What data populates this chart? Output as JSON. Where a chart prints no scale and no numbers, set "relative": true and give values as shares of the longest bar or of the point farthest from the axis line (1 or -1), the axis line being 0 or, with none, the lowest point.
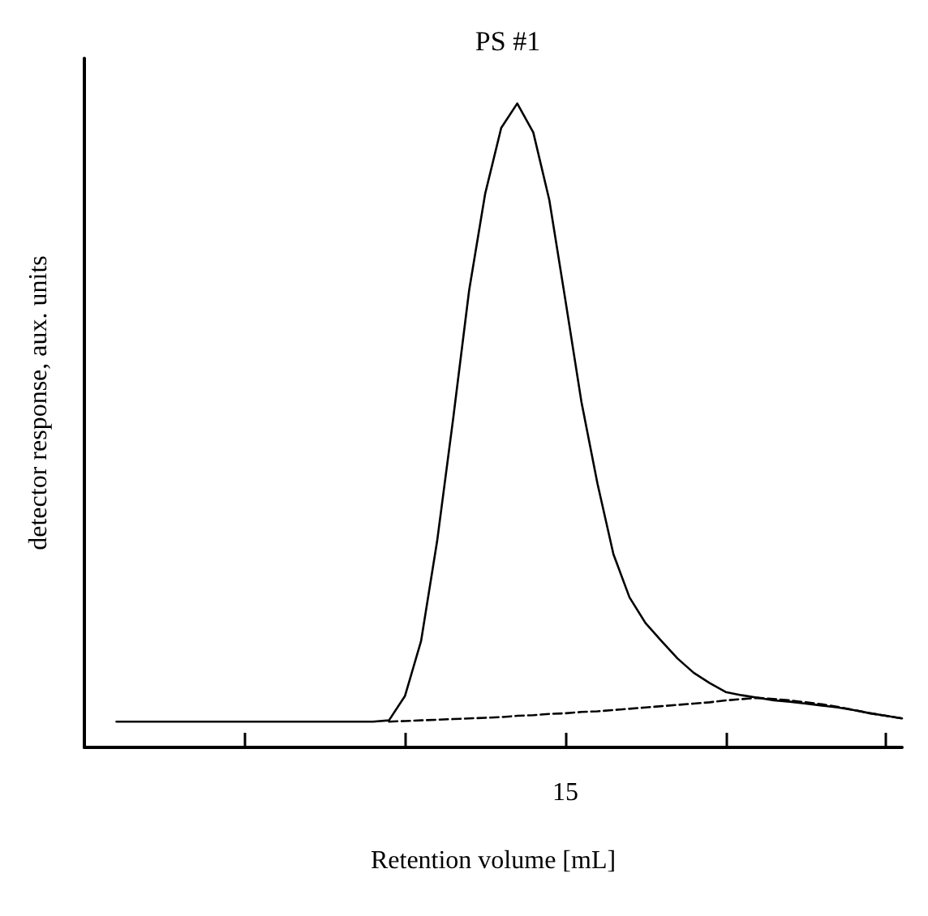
{
  "chart_data": {
    "type": "line",
    "title": "PS #1",
    "xlabel": "Retention volume [mL]",
    "ylabel": "detector response, aux. units",
    "relative": true,
    "annotations": [
      "15"
    ],
    "marker": "none",
    "categories": [
      null,
      null,
      null,
      null,
      null,
      null,
      null,
      null,
      null,
      null,
      null,
      null,
      null,
      null,
      null,
      null,
      null,
      null,
      null,
      null,
      null,
      null,
      null,
      null,
      null,
      null,
      null,
      null,
      null,
      null,
      null,
      null,
      null,
      null,
      null,
      null,
      null,
      null,
      null,
      null,
      null,
      null,
      null,
      null,
      null,
      null,
      null,
      null,
      null,
      null,
      null,
      null
    ],
    "series": [
      {
        "color": "#000000",
        "line_style": "solid",
        "values": [
          null,
          null,
          0.04,
          0.04,
          0.04,
          0.04,
          0.04,
          0.04,
          0.04,
          0.04,
          0.04,
          0.04,
          0.04,
          0.04,
          0.04,
          0.04,
          0.04,
          0.04,
          0.04,
          0.042,
          0.08,
          0.165,
          0.32,
          0.51,
          0.71,
          0.86,
          0.962,
          1,
          0.955,
          0.85,
          0.695,
          0.537,
          0.41,
          0.3,
          0.233,
          0.193,
          0.165,
          0.138,
          0.116,
          0.1,
          0.086,
          0.081,
          0.077,
          0.073,
          0.071,
          0.068,
          0.065,
          0.062,
          0.058,
          0.053,
          0.049,
          0.045
        ]
      },
      {
        "color": "#000000",
        "line_style": "dashed",
        "values": [
          null,
          null,
          null,
          null,
          null,
          null,
          null,
          null,
          null,
          null,
          null,
          null,
          null,
          null,
          null,
          null,
          null,
          null,
          null,
          0.04,
          0.041,
          0.042,
          0.043,
          0.044,
          0.045,
          0.046,
          0.047,
          0.049,
          0.05,
          0.052,
          0.053,
          0.055,
          0.056,
          0.058,
          0.06,
          0.062,
          0.064,
          0.066,
          0.068,
          0.07,
          0.073,
          0.075,
          0.077,
          0.075,
          0.073,
          0.07,
          0.067,
          0.063,
          0.058,
          0.053,
          0.049,
          0.045
        ]
      }
    ]
  }
}
